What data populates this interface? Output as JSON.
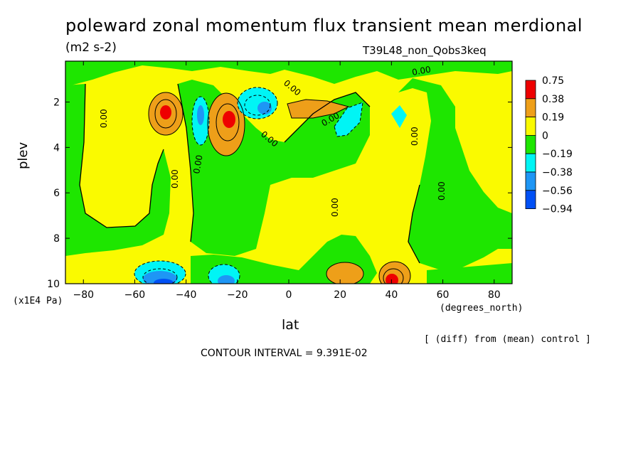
{
  "title": "poleward zonal momentum flux transient mean merdional",
  "units": "(m2 s-2)",
  "experiment": "T39L48_non_Qobs3keq",
  "y_axis_unit": "(x1E4 Pa)",
  "x_axis_unit": "(degrees_north)",
  "diff_note": "[ (diff) from (mean) control ]",
  "contour_interval": "CONTOUR INTERVAL = 9.391E-02",
  "chart_data": {
    "type": "heatmap",
    "title": "poleward zonal momentum flux transient mean merdional",
    "xlabel": "lat",
    "ylabel": "plev",
    "xlim": [
      -87,
      87
    ],
    "ylim": [
      10,
      0.2
    ],
    "y_reversed": true,
    "xticks": [
      -80,
      -60,
      -40,
      -20,
      0,
      20,
      40,
      60,
      80
    ],
    "yticks": [
      2,
      4,
      6,
      8,
      10
    ],
    "legend": {
      "placement": "right",
      "levels": [
        "0.75",
        "0.38",
        "0.19",
        "0",
        "−0.19",
        "−0.38",
        "−0.56",
        "−0.94"
      ],
      "colors": [
        "#ee0000",
        "#ee9f19",
        "#fafa00",
        "#1ee600",
        "#00f5f5",
        "#1e96f5",
        "#0050f5"
      ]
    },
    "zero_contour_label": "0.00",
    "features": [
      {
        "lat": -50,
        "plev": 2.4,
        "value": 0.75
      },
      {
        "lat": -24,
        "plev": 2.6,
        "value": 0.75
      },
      {
        "lat": -10,
        "plev": 2.2,
        "value": -0.38
      },
      {
        "lat": -32,
        "plev": 2.8,
        "value": -0.38
      },
      {
        "lat": 26,
        "plev": 2.8,
        "value": -0.38
      },
      {
        "lat": 43,
        "plev": 2.7,
        "value": -0.38
      },
      {
        "lat": 5,
        "plev": 2.2,
        "value": 0.19
      },
      {
        "lat": -49,
        "plev": 9.8,
        "value": -0.56
      },
      {
        "lat": -23,
        "plev": 9.8,
        "value": -0.38
      },
      {
        "lat": 43,
        "plev": 9.8,
        "value": 0.75
      },
      {
        "lat": 22,
        "plev": 9.8,
        "value": 0.38
      }
    ]
  }
}
